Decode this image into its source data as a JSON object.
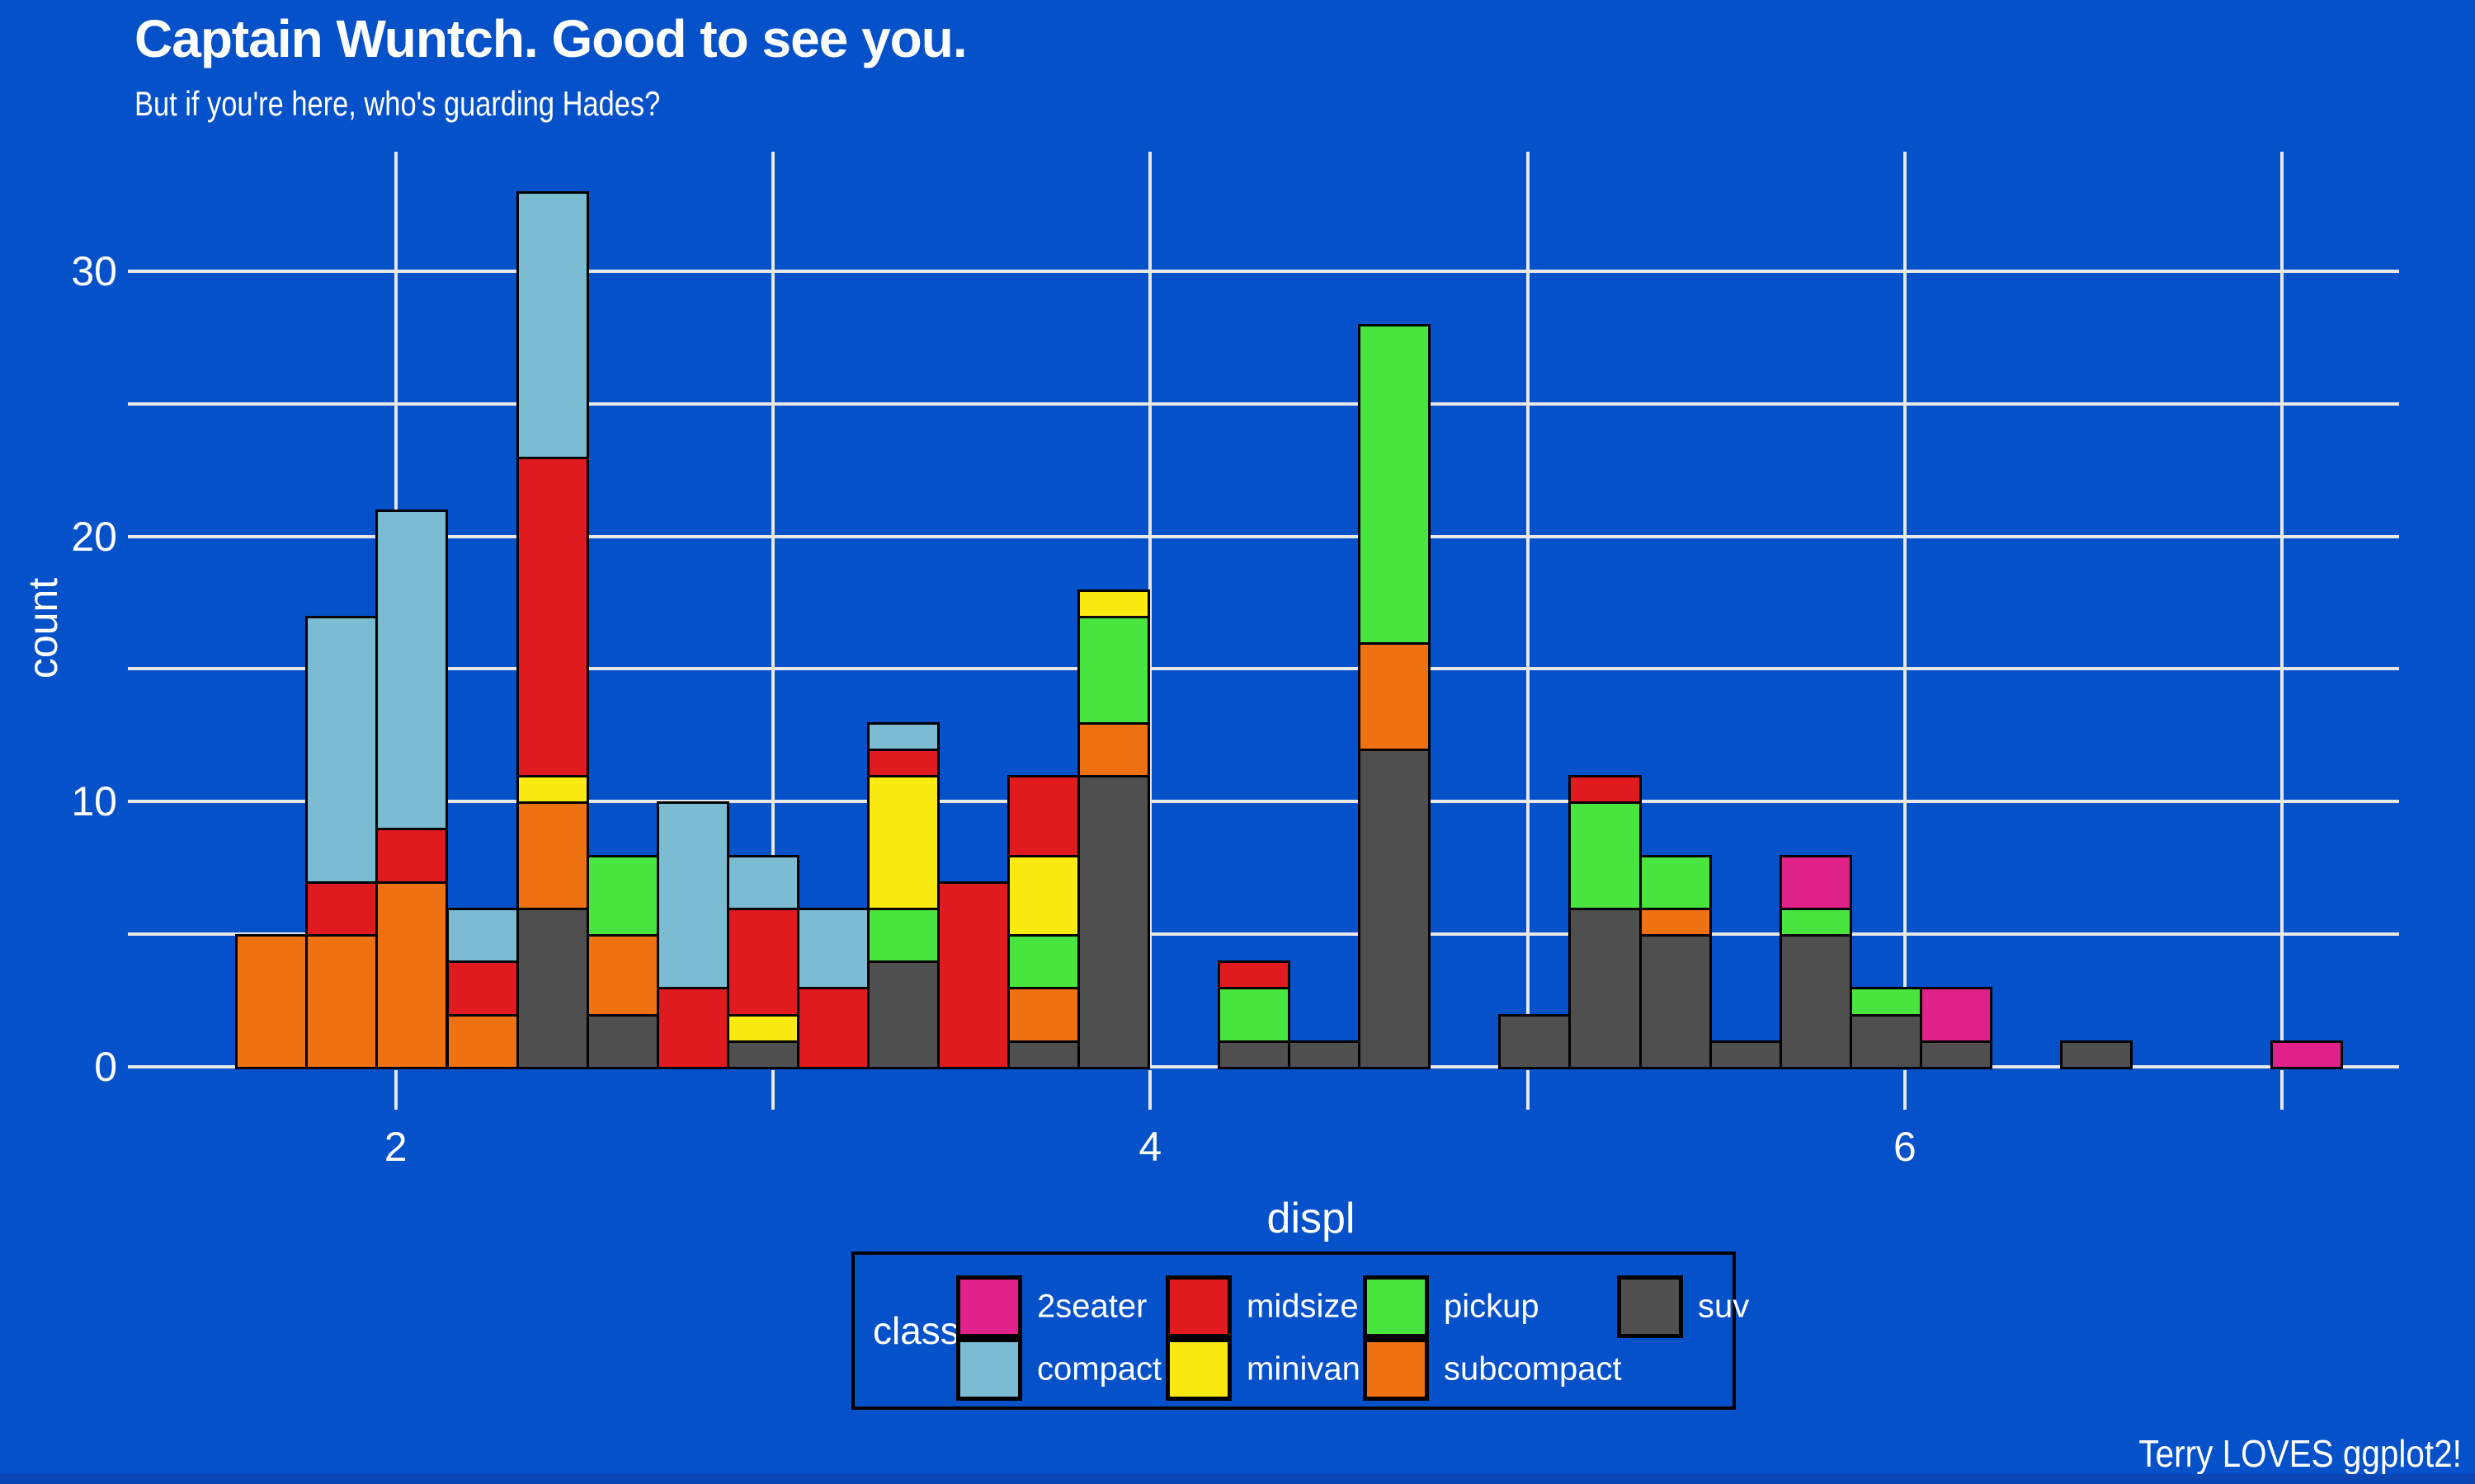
{
  "page": {
    "background": "#0551CA",
    "text_color": "#FFFFFF",
    "bottom_strip_color": "#0A47B5"
  },
  "title": "Captain Wuntch. Good to see you.",
  "subtitle": "But if you're here, who's guarding Hades?",
  "caption": "Terry LOVES ggplot2!",
  "axes": {
    "x_label": "displ",
    "y_label": "count",
    "x_tick_labels": [
      {
        "value": 2,
        "label": "2"
      },
      {
        "value": 4,
        "label": "4"
      },
      {
        "value": 6,
        "label": "6"
      }
    ],
    "y_tick_labels": [
      {
        "value": 0,
        "label": "0"
      },
      {
        "value": 10,
        "label": "10"
      },
      {
        "value": 20,
        "label": "20"
      },
      {
        "value": 30,
        "label": "30"
      }
    ]
  },
  "legend": {
    "title": "class",
    "columns": [
      [
        "2seater",
        "compact"
      ],
      [
        "midsize",
        "minivan"
      ],
      [
        "pickup",
        "subcompact"
      ],
      [
        "suv"
      ]
    ]
  },
  "chart_data": {
    "type": "bar",
    "subtype": "stacked-histogram",
    "title": "Captain Wuntch. Good to see you.",
    "subtitle": "But if you're here, who's guarding Hades?",
    "caption": "Terry LOVES ggplot2!",
    "xlabel": "displ",
    "ylabel": "count",
    "xlim": [
      1.29,
      7.31
    ],
    "ylim": [
      0,
      34.5
    ],
    "x_gridlines": [
      2,
      3,
      4,
      5,
      6,
      7
    ],
    "y_gridlines": [
      0,
      5,
      10,
      15,
      20,
      25,
      30
    ],
    "grid_on": true,
    "grid_color": "#E7E7E7",
    "tick_color": "#E7E7E7",
    "bar_border_color": "#000000",
    "bin_width": 0.186,
    "stack_order_bottom_to_top": [
      "suv",
      "subcompact",
      "pickup",
      "minivan",
      "midsize",
      "compact",
      "2seater"
    ],
    "classes": {
      "2seater": "#E0218A",
      "compact": "#7BBCD2",
      "midsize": "#E01B20",
      "minivan": "#FAEA12",
      "pickup": "#48E53F",
      "subcompact": "#EE7112",
      "suv": "#4F4F4F"
    },
    "legend_position": "bottom",
    "total_count": 234,
    "bins": [
      {
        "x0": 1.575,
        "x1": 1.761,
        "segments": [
          [
            "subcompact",
            5
          ]
        ]
      },
      {
        "x0": 1.761,
        "x1": 1.947,
        "segments": [
          [
            "subcompact",
            5
          ],
          [
            "midsize",
            2
          ],
          [
            "compact",
            10
          ]
        ]
      },
      {
        "x0": 1.947,
        "x1": 2.133,
        "segments": [
          [
            "subcompact",
            7
          ],
          [
            "midsize",
            2
          ],
          [
            "compact",
            12
          ]
        ]
      },
      {
        "x0": 2.133,
        "x1": 2.319,
        "segments": [
          [
            "subcompact",
            2
          ],
          [
            "midsize",
            2
          ],
          [
            "compact",
            2
          ]
        ]
      },
      {
        "x0": 2.319,
        "x1": 2.505,
        "segments": [
          [
            "suv",
            6
          ],
          [
            "subcompact",
            4
          ],
          [
            "minivan",
            1
          ],
          [
            "midsize",
            12
          ],
          [
            "compact",
            10
          ]
        ]
      },
      {
        "x0": 2.505,
        "x1": 2.691,
        "segments": [
          [
            "suv",
            2
          ],
          [
            "subcompact",
            3
          ],
          [
            "pickup",
            3
          ]
        ]
      },
      {
        "x0": 2.691,
        "x1": 2.877,
        "segments": [
          [
            "midsize",
            3
          ],
          [
            "compact",
            7
          ]
        ]
      },
      {
        "x0": 2.877,
        "x1": 3.063,
        "segments": [
          [
            "suv",
            1
          ],
          [
            "minivan",
            1
          ],
          [
            "midsize",
            4
          ],
          [
            "compact",
            2
          ]
        ]
      },
      {
        "x0": 3.063,
        "x1": 3.249,
        "segments": [
          [
            "midsize",
            3
          ],
          [
            "compact",
            3
          ]
        ]
      },
      {
        "x0": 3.249,
        "x1": 3.435,
        "segments": [
          [
            "suv",
            4
          ],
          [
            "pickup",
            2
          ],
          [
            "minivan",
            5
          ],
          [
            "midsize",
            1
          ],
          [
            "compact",
            1
          ]
        ]
      },
      {
        "x0": 3.435,
        "x1": 3.621,
        "segments": [
          [
            "midsize",
            7
          ]
        ]
      },
      {
        "x0": 3.621,
        "x1": 3.807,
        "segments": [
          [
            "suv",
            1
          ],
          [
            "subcompact",
            2
          ],
          [
            "pickup",
            2
          ],
          [
            "minivan",
            3
          ],
          [
            "midsize",
            3
          ]
        ]
      },
      {
        "x0": 3.807,
        "x1": 3.993,
        "segments": [
          [
            "suv",
            11
          ],
          [
            "subcompact",
            2
          ],
          [
            "pickup",
            4
          ],
          [
            "minivan",
            1
          ]
        ]
      },
      {
        "x0": 4.179,
        "x1": 4.365,
        "segments": [
          [
            "suv",
            1
          ],
          [
            "pickup",
            2
          ],
          [
            "midsize",
            1
          ]
        ]
      },
      {
        "x0": 4.365,
        "x1": 4.551,
        "segments": [
          [
            "suv",
            1
          ]
        ]
      },
      {
        "x0": 4.551,
        "x1": 4.737,
        "segments": [
          [
            "suv",
            12
          ],
          [
            "subcompact",
            4
          ],
          [
            "pickup",
            12
          ]
        ]
      },
      {
        "x0": 4.923,
        "x1": 5.109,
        "segments": [
          [
            "suv",
            2
          ]
        ]
      },
      {
        "x0": 5.109,
        "x1": 5.295,
        "segments": [
          [
            "suv",
            6
          ],
          [
            "pickup",
            4
          ],
          [
            "midsize",
            1
          ]
        ]
      },
      {
        "x0": 5.295,
        "x1": 5.481,
        "segments": [
          [
            "suv",
            5
          ],
          [
            "subcompact",
            1
          ],
          [
            "pickup",
            2
          ]
        ]
      },
      {
        "x0": 5.481,
        "x1": 5.667,
        "segments": [
          [
            "suv",
            1
          ]
        ]
      },
      {
        "x0": 5.667,
        "x1": 5.853,
        "segments": [
          [
            "suv",
            5
          ],
          [
            "pickup",
            1
          ],
          [
            "2seater",
            2
          ]
        ]
      },
      {
        "x0": 5.853,
        "x1": 6.039,
        "segments": [
          [
            "suv",
            2
          ],
          [
            "pickup",
            1
          ]
        ]
      },
      {
        "x0": 6.039,
        "x1": 6.225,
        "segments": [
          [
            "suv",
            1
          ],
          [
            "2seater",
            2
          ]
        ]
      },
      {
        "x0": 6.411,
        "x1": 6.597,
        "segments": [
          [
            "suv",
            1
          ]
        ]
      },
      {
        "x0": 6.969,
        "x1": 7.155,
        "segments": [
          [
            "2seater",
            1
          ]
        ]
      }
    ]
  }
}
